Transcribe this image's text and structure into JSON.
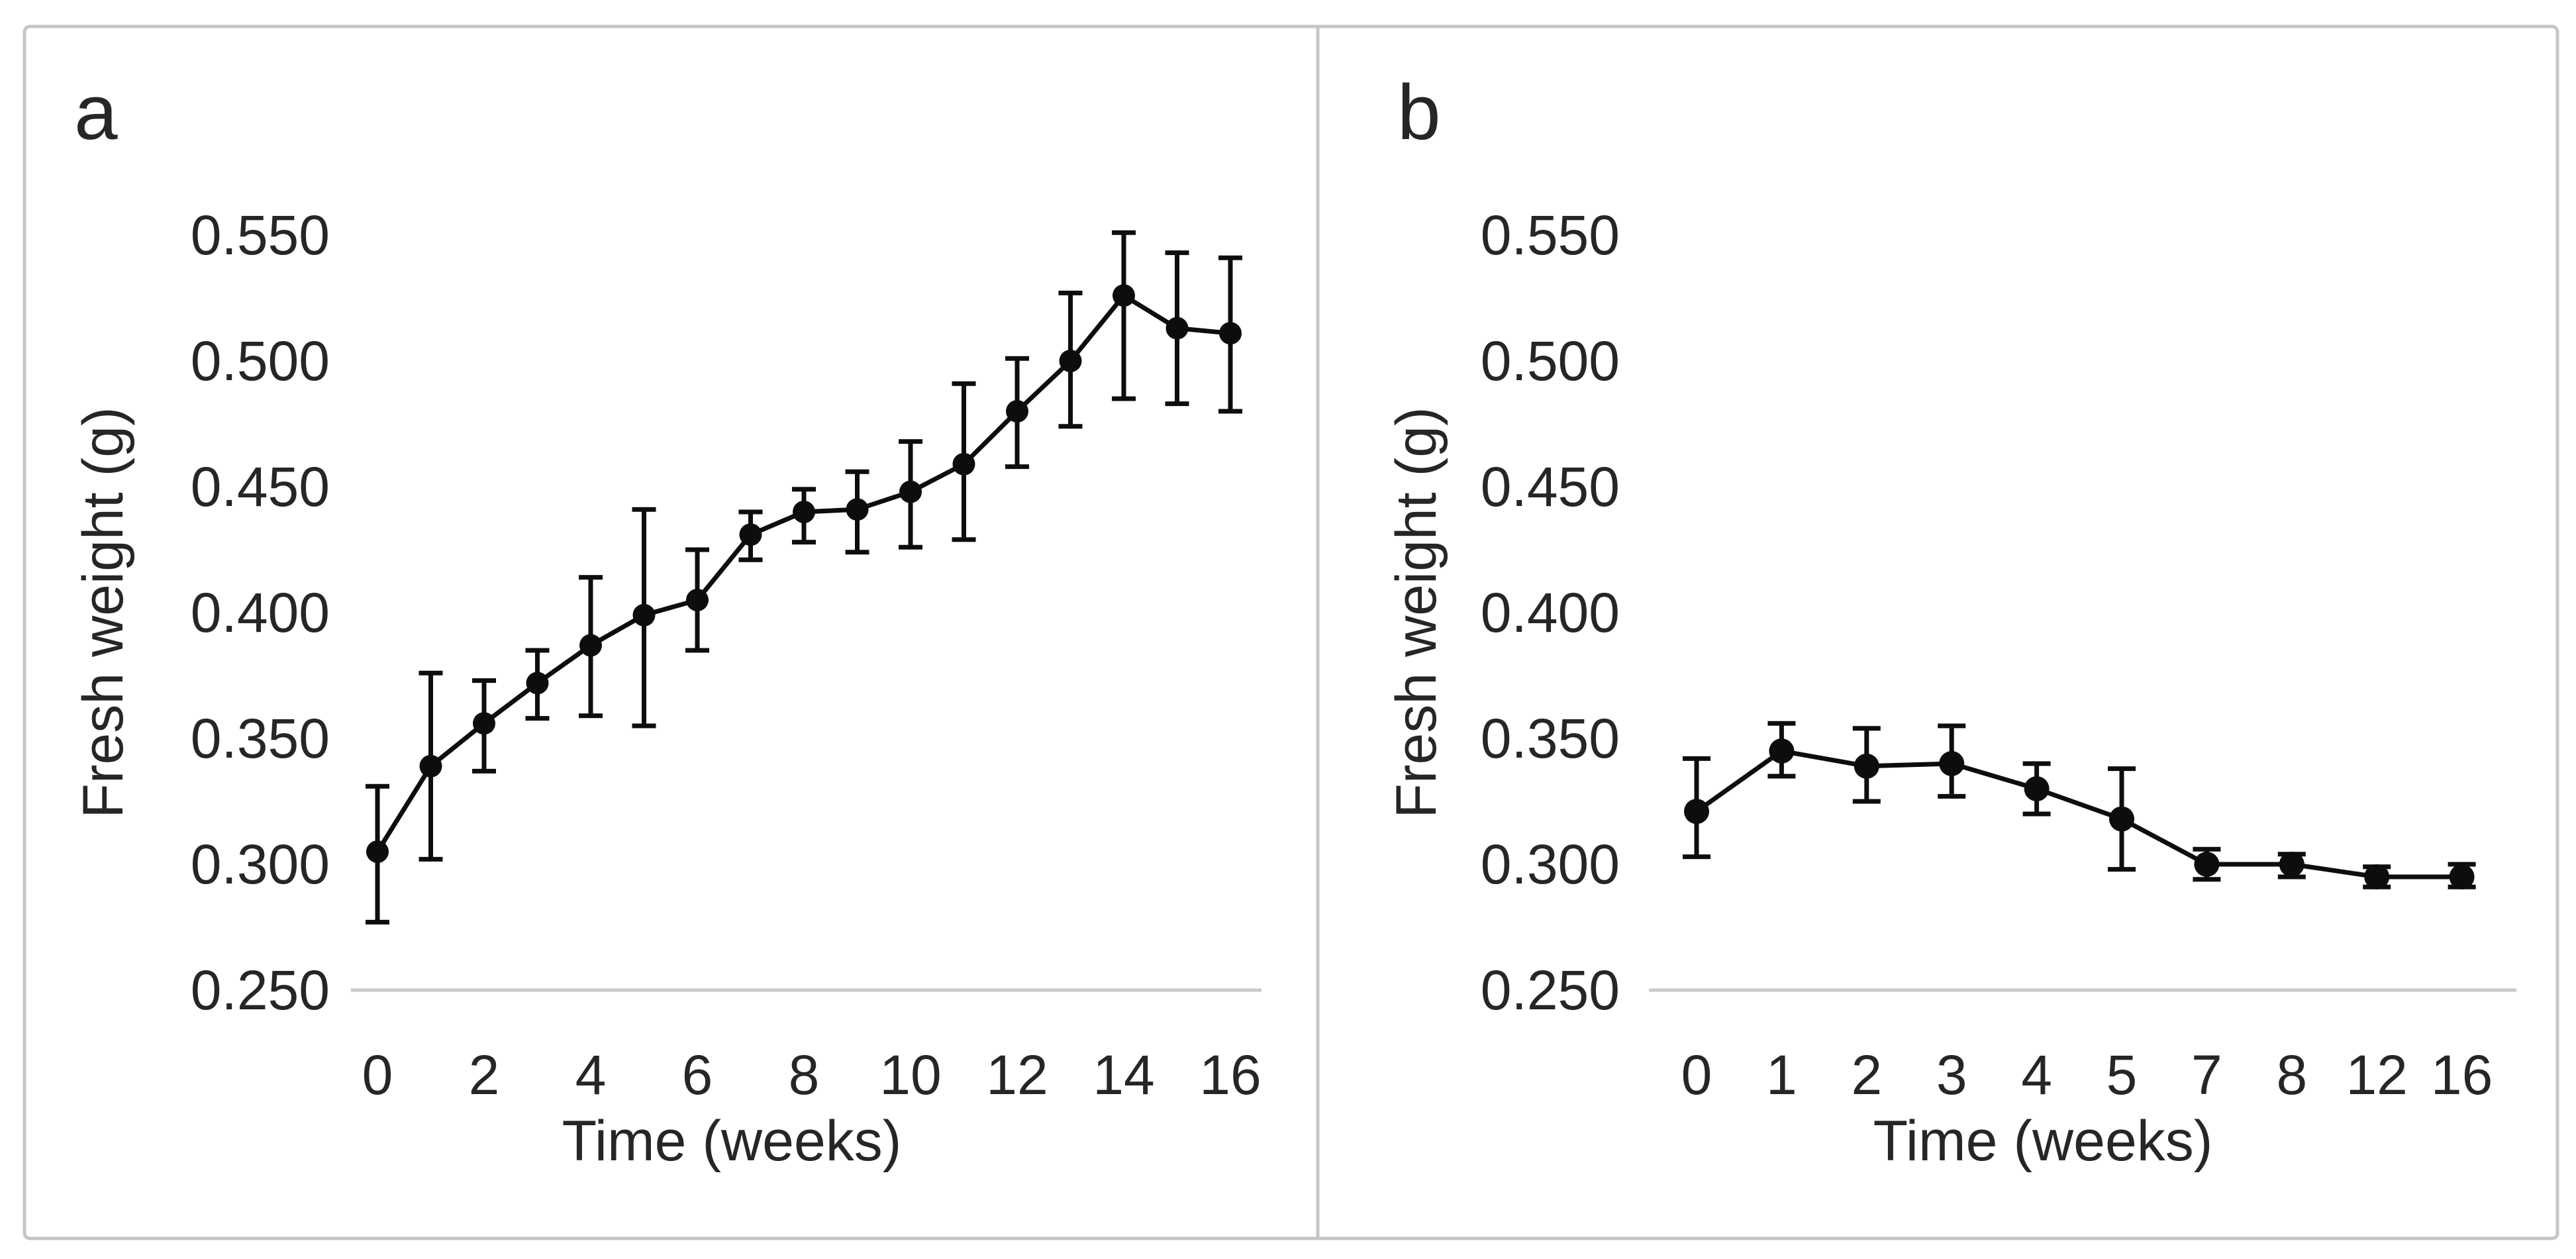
{
  "figure": {
    "panel_letters": [
      "a",
      "b"
    ],
    "background": "#ffffff",
    "border_color": "#c6c6c6",
    "axis_line_color": "#c9c9c9",
    "series_color": "#0d0d0d",
    "text_color": "#262626"
  },
  "chart_data": [
    {
      "panel": "a",
      "type": "line",
      "title": "",
      "xlabel": "Time (weeks)",
      "ylabel": "Fresh weight (g)",
      "categories": [
        0,
        1,
        2,
        3,
        4,
        5,
        6,
        7,
        8,
        9,
        10,
        11,
        12,
        13,
        14,
        15,
        16
      ],
      "values": [
        0.305,
        0.339,
        0.356,
        0.372,
        0.387,
        0.399,
        0.405,
        0.431,
        0.44,
        0.441,
        0.448,
        0.459,
        0.48,
        0.5,
        0.526,
        0.513,
        0.511
      ],
      "error_low": [
        0.277,
        0.302,
        0.337,
        0.358,
        0.359,
        0.355,
        0.385,
        0.421,
        0.428,
        0.424,
        0.426,
        0.429,
        0.458,
        0.474,
        0.485,
        0.483,
        0.48
      ],
      "error_high": [
        0.331,
        0.376,
        0.373,
        0.385,
        0.414,
        0.441,
        0.425,
        0.44,
        0.449,
        0.456,
        0.468,
        0.491,
        0.501,
        0.527,
        0.551,
        0.543,
        0.541
      ],
      "xtick_labels": [
        "0",
        "2",
        "4",
        "6",
        "8",
        "10",
        "12",
        "14",
        "16"
      ],
      "ytick_labels": [
        "0.250",
        "0.300",
        "0.350",
        "0.400",
        "0.450",
        "0.500",
        "0.550"
      ],
      "ylim": [
        0.25,
        0.55
      ],
      "grid": false,
      "legend": "none",
      "marker": "filled-circle",
      "error_bars": "y-both"
    },
    {
      "panel": "b",
      "type": "line",
      "title": "",
      "xlabel": "Time (weeks)",
      "ylabel": "Fresh weight (g)",
      "categories": [
        0,
        1,
        2,
        3,
        4,
        5,
        7,
        8,
        12,
        16
      ],
      "values": [
        0.321,
        0.345,
        0.339,
        0.34,
        0.33,
        0.318,
        0.3,
        0.3,
        0.295,
        0.295
      ],
      "error_low": [
        0.303,
        0.335,
        0.325,
        0.327,
        0.32,
        0.298,
        0.294,
        0.295,
        0.291,
        0.291
      ],
      "error_high": [
        0.342,
        0.356,
        0.354,
        0.355,
        0.34,
        0.338,
        0.306,
        0.304,
        0.299,
        0.3
      ],
      "xtick_labels": [
        "0",
        "1",
        "2",
        "3",
        "4",
        "5",
        "7",
        "8",
        "12",
        "16"
      ],
      "ytick_labels": [
        "0.250",
        "0.300",
        "0.350",
        "0.400",
        "0.450",
        "0.500",
        "0.550"
      ],
      "ylim": [
        0.25,
        0.55
      ],
      "grid": false,
      "legend": "none",
      "marker": "filled-circle",
      "error_bars": "y-both"
    }
  ]
}
